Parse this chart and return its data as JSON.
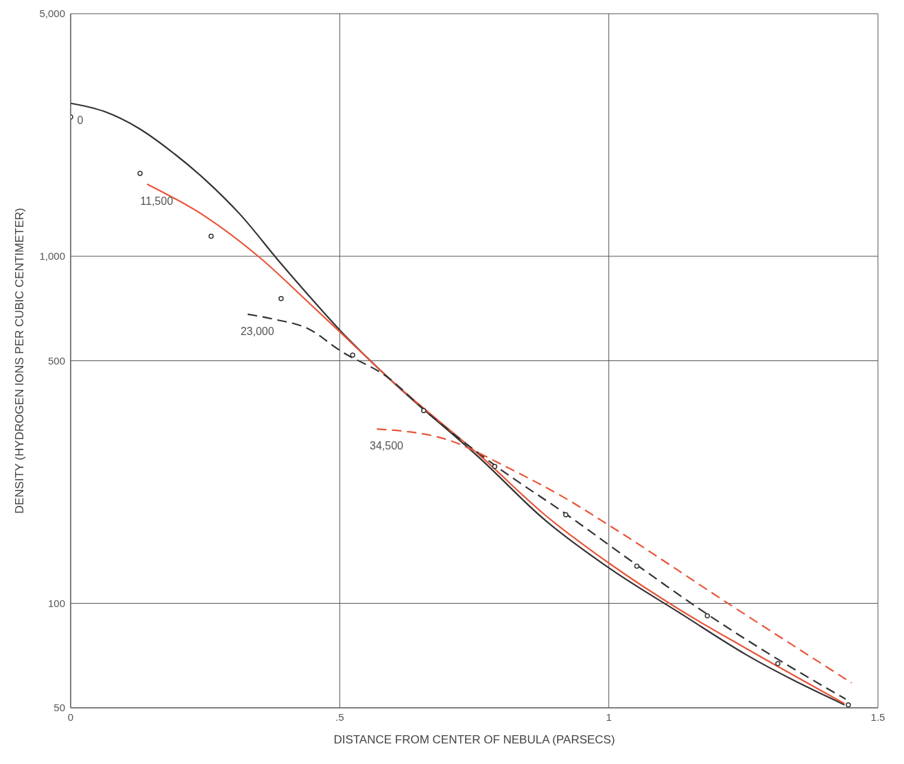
{
  "chart_data": {
    "type": "line",
    "xlabel": "DISTANCE FROM CENTER OF NEBULA (PARSECS)",
    "ylabel": "DENSITY (HYDROGEN IONS PER CUBIC CENTIMETER)",
    "log": "y",
    "grid": true,
    "legend": false,
    "xlim": [
      0,
      1.5
    ],
    "xticks": [
      0,
      {
        "value": 0.5,
        "label": ".5"
      },
      1,
      1.5
    ],
    "ylim": [
      50,
      5000
    ],
    "yticks": [
      50,
      100,
      500,
      {
        "value": 1000,
        "label": "1,000"
      },
      {
        "value": 5000,
        "label": "5,000"
      }
    ],
    "series": [
      {
        "name": "0",
        "color": "#333333",
        "line_style": "solid",
        "marker": "none",
        "x": [
          0,
          0.063,
          0.126,
          0.188,
          0.251,
          0.314,
          0.389,
          0.44,
          0.503,
          0.59,
          0.766,
          0.879,
          1.005,
          1.131,
          1.256,
          1.438
        ],
        "values": [
          2760,
          2612,
          2340,
          2000,
          1656,
          1325,
          960,
          778,
          606,
          447,
          257,
          175,
          125,
          94,
          71,
          51
        ]
      },
      {
        "name": "11,500",
        "color": "#e8553a",
        "line_style": "solid",
        "marker": "none",
        "x": [
          0.142,
          0.251,
          0.352,
          0.44,
          0.503,
          0.59,
          0.766,
          0.879,
          1.005,
          1.131,
          1.256,
          1.438
        ],
        "values": [
          1614,
          1300,
          990,
          741,
          600,
          447,
          262,
          181,
          129,
          96,
          74,
          51.4
        ]
      },
      {
        "name": "23,000",
        "color": "#333333",
        "line_style": "dashed",
        "marker": "none",
        "x": [
          0.329,
          0.377,
          0.44,
          0.503,
          0.59,
          0.656,
          0.788,
          0.92,
          1.052,
          1.183,
          1.314,
          1.44
        ],
        "values": [
          681,
          659,
          620,
          532,
          447,
          362,
          250,
          181,
          129,
          93,
          69,
          53
        ]
      },
      {
        "name": "34,500",
        "color": "#e8553a",
        "line_style": "dashed",
        "marker": "none",
        "x": [
          0.569,
          0.691,
          0.817,
          0.926,
          1.0,
          1.23,
          1.451
        ],
        "values": [
          318,
          299,
          244,
          198,
          168,
          98,
          59
        ]
      },
      {
        "type": "scatter",
        "color": "#333333",
        "marker": "circle",
        "x": [
          0,
          0.129,
          0.261,
          0.391,
          0.524,
          0.656,
          0.788,
          0.92,
          1.052,
          1.183,
          1.314,
          1.445
        ],
        "values": [
          2520,
          1733,
          1143,
          755,
          519,
          359,
          248,
          180,
          128,
          92,
          67,
          51
        ]
      }
    ]
  }
}
